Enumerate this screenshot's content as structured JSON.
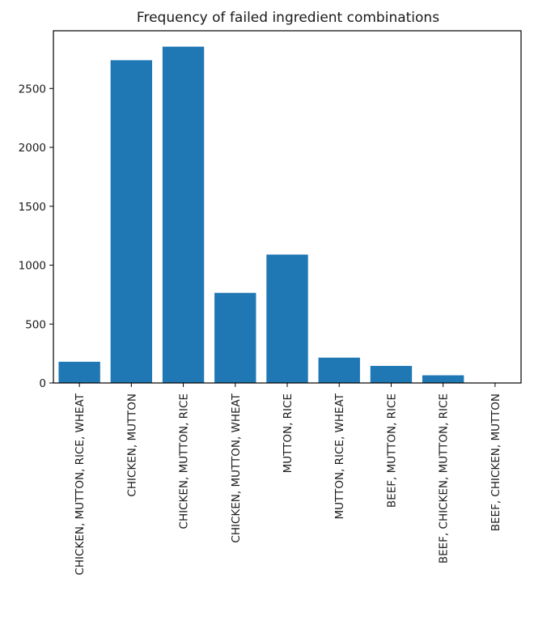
{
  "chart_data": {
    "type": "bar",
    "title": "Frequency of failed ingredient combinations",
    "xlabel": "",
    "ylabel": "",
    "categories": [
      "CHICKEN, MUTTON, RICE, WHEAT",
      "CHICKEN, MUTTON",
      "CHICKEN, MUTTON, RICE",
      "CHICKEN, MUTTON, WHEAT",
      "MUTTON, RICE",
      "MUTTON, RICE, WHEAT",
      "BEEF, MUTTON, RICE",
      "BEEF, CHICKEN, MUTTON, RICE",
      "BEEF, CHICKEN, MUTTON"
    ],
    "values": [
      180,
      2740,
      2855,
      765,
      1090,
      215,
      145,
      65,
      3
    ],
    "ylim": [
      0,
      2990
    ],
    "yticks": [
      0,
      500,
      1000,
      1500,
      2000,
      2500
    ],
    "grid": false,
    "bar_color": "#1f77b4"
  }
}
